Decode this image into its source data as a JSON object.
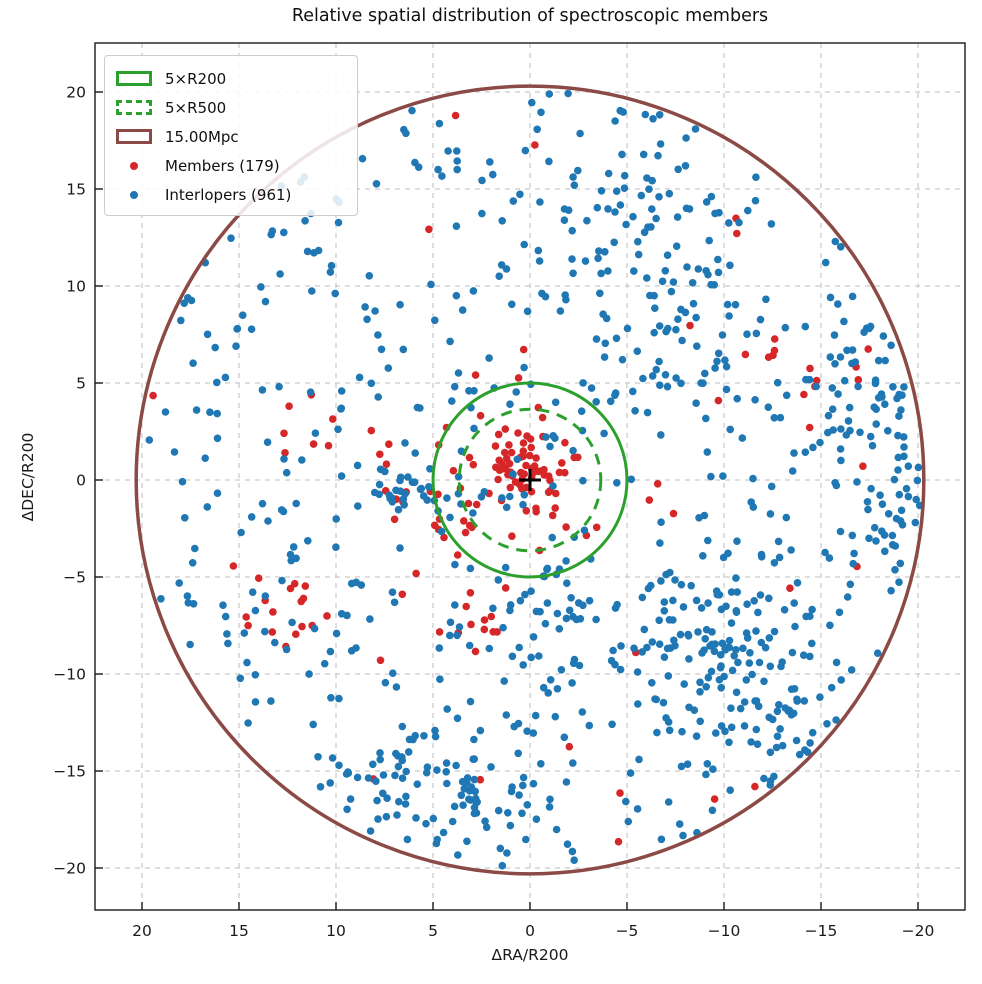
{
  "title": "Relative spatial distribution of spectroscopic members",
  "chart_data": {
    "type": "scatter",
    "title": "Relative spatial distribution of spectroscopic members",
    "xlabel": "ΔRA/R200",
    "ylabel": "ΔDEC/R200",
    "x_tick_labels": [
      "20",
      "15",
      "10",
      "5",
      "0",
      "−5",
      "−10",
      "−15",
      "−20"
    ],
    "x_tick_values": [
      20,
      15,
      10,
      5,
      0,
      -5,
      -10,
      -15,
      -20
    ],
    "y_tick_labels": [
      "−20",
      "−15",
      "−10",
      "−5",
      "0",
      "5",
      "10",
      "15",
      "20"
    ],
    "y_tick_values": [
      -20,
      -15,
      -10,
      -5,
      0,
      5,
      10,
      15,
      20
    ],
    "xlim": [
      22.4,
      -22.4
    ],
    "ylim": [
      -22.4,
      22.4
    ],
    "x_axis_inverted": true,
    "grid": {
      "visible": true,
      "style": "dashed",
      "color": "#c9c9c9"
    },
    "cluster_center_marker": {
      "x": 0,
      "y": 0,
      "shape": "plus",
      "color": "#000000"
    },
    "overlays": [
      {
        "label": "5×R200",
        "shape": "circle",
        "radius_r200": 5.0,
        "line_style": "solid",
        "color": "#2ca02c"
      },
      {
        "label": "5×R500",
        "shape": "circle",
        "radius_r200": 3.65,
        "line_style": "dashed",
        "color": "#2ca02c"
      },
      {
        "label": "15.00Mpc",
        "shape": "circle",
        "radius_r200": 20.3,
        "line_style": "solid",
        "color": "#8b4a45"
      }
    ],
    "series": [
      {
        "name": "Members (179)",
        "count": 179,
        "color": "#d62728",
        "marker_radius_px": 3.8,
        "seed": 12345,
        "max_radius": 20.05,
        "components": [
          {
            "kind": "gauss",
            "x": 0.3,
            "y": 0.2,
            "sx": 1.3,
            "sy": 1.1,
            "n": 55
          },
          {
            "kind": "gauss",
            "x": 0.5,
            "y": -0.5,
            "sx": 3.4,
            "sy": 3.0,
            "n": 35
          },
          {
            "kind": "gauss",
            "x": 12.4,
            "y": -6.2,
            "sx": 1.4,
            "sy": 1.2,
            "n": 14
          },
          {
            "kind": "gauss",
            "x": 2.5,
            "y": -7.0,
            "sx": 1.8,
            "sy": 1.2,
            "n": 12
          },
          {
            "kind": "gauss",
            "x": -13.0,
            "y": 6.0,
            "sx": 1.3,
            "sy": 0.9,
            "n": 9
          },
          {
            "kind": "gauss",
            "x": 10.8,
            "y": 2.6,
            "sx": 1.5,
            "sy": 1.3,
            "n": 7
          },
          {
            "kind": "gauss",
            "x": 5.0,
            "y": -1.5,
            "sx": 1.6,
            "sy": 1.4,
            "n": 10
          },
          {
            "kind": "disk",
            "r": 20.0,
            "n": 37
          }
        ]
      },
      {
        "name": "Interlopers (961)",
        "count": 961,
        "color": "#1f77b4",
        "marker_radius_px": 3.8,
        "seed": 67890,
        "max_radius": 20.15,
        "components": [
          {
            "kind": "disk",
            "r": 20.15,
            "n": 480
          },
          {
            "kind": "gauss",
            "x": -10.0,
            "y": -8.5,
            "sx": 2.8,
            "sy": 2.2,
            "n": 120
          },
          {
            "kind": "gauss",
            "x": -17.0,
            "y": 5.0,
            "sx": 1.6,
            "sy": 2.6,
            "n": 55
          },
          {
            "kind": "gauss",
            "x": 3.0,
            "y": -15.3,
            "sx": 2.6,
            "sy": 1.8,
            "n": 60
          },
          {
            "kind": "gauss",
            "x": -4.5,
            "y": 13.5,
            "sx": 2.6,
            "sy": 2.2,
            "n": 50
          },
          {
            "kind": "gauss",
            "x": 6.3,
            "y": -0.6,
            "sx": 0.7,
            "sy": 0.5,
            "n": 22
          },
          {
            "kind": "gauss",
            "x": -7.5,
            "y": 7.0,
            "sx": 2.2,
            "sy": 2.2,
            "n": 45
          },
          {
            "kind": "gauss",
            "x": -19.3,
            "y": -1.5,
            "sx": 0.9,
            "sy": 2.0,
            "n": 25
          },
          {
            "kind": "gauss",
            "x": 7.8,
            "y": -16.0,
            "sx": 2.0,
            "sy": 1.5,
            "n": 30
          },
          {
            "kind": "gauss",
            "x": -13.0,
            "y": -13.0,
            "sx": 2.0,
            "sy": 1.8,
            "n": 35
          },
          {
            "kind": "gauss",
            "x": -2.0,
            "y": -7.5,
            "sx": 2.5,
            "sy": 2.0,
            "n": 39
          }
        ]
      }
    ],
    "legend": {
      "position": "upper-left",
      "entries": [
        {
          "label": "5×R200",
          "swatch": "rect-solid-green"
        },
        {
          "label": "5×R500",
          "swatch": "rect-dashed-green"
        },
        {
          "label": "15.00Mpc",
          "swatch": "rect-solid-brown"
        },
        {
          "label": "Members (179)",
          "swatch": "dot-red"
        },
        {
          "label": "Interlopers (961)",
          "swatch": "dot-blue"
        }
      ]
    }
  }
}
